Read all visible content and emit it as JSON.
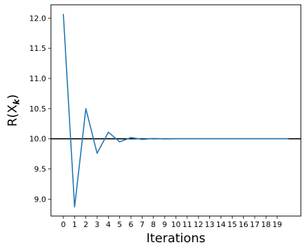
{
  "chart_data": {
    "type": "line",
    "x": [
      0,
      1,
      2,
      3,
      4,
      5,
      6,
      7,
      8,
      9,
      10,
      11,
      12,
      13,
      14,
      15,
      16,
      17,
      18,
      19,
      20
    ],
    "series": [
      {
        "values": [
          12.07,
          8.87,
          10.5,
          9.76,
          10.11,
          9.95,
          10.02,
          9.99,
          10.005,
          9.998,
          10.001,
          10.0,
          10.0,
          10.0,
          10.0,
          10.0,
          10.0,
          10.0,
          10.0,
          10.0,
          10.0
        ],
        "color": "#1f77b4"
      }
    ],
    "reference_line": {
      "y": 10.0,
      "color": "#000000"
    },
    "xlabel": "Iterations",
    "ylabel": "R(X_k)",
    "ylabel_main": "R(X",
    "ylabel_sub": "k",
    "ylabel_close": ")",
    "xlim": [
      -1.1,
      21.1
    ],
    "ylim": [
      8.72,
      12.22
    ],
    "x_ticks": [
      0,
      1,
      2,
      3,
      4,
      5,
      6,
      7,
      8,
      9,
      10,
      11,
      12,
      13,
      14,
      15,
      16,
      17,
      18,
      19
    ],
    "y_ticks": [
      9.0,
      9.5,
      10.0,
      10.5,
      11.0,
      11.5,
      12.0
    ],
    "y_tick_labels": [
      "9.0",
      "9.5",
      "10.0",
      "10.5",
      "11.0",
      "11.5",
      "12.0"
    ],
    "grid": false
  }
}
